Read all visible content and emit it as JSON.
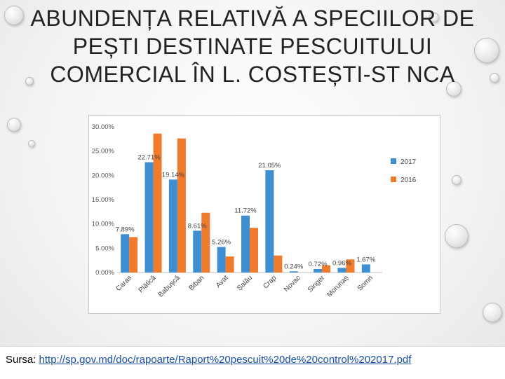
{
  "slide": {
    "title": "ABUNDENȚA RELATIVĂ A SPECIILOR DE PEȘTI DESTINATE PESCUITULUI COMERCIAL ÎN L. COSTEȘTI-ST NCA",
    "source_label": "Sursa:",
    "source_url": "http://sp.gov.md/doc/rapoarte/Raport%20pescuit%20de%20control%202017.pdf"
  },
  "chart_data": {
    "type": "bar",
    "categories": [
      "Caras",
      "Plătică",
      "Babușcă",
      "Biban",
      "Avat",
      "Șalău",
      "Crap",
      "Novac",
      "Singer",
      "Morunaș",
      "Somn"
    ],
    "series": [
      {
        "name": "2017",
        "color": "#3d8fd1",
        "values": [
          7.89,
          22.71,
          19.14,
          8.61,
          5.26,
          11.72,
          21.05,
          0.24,
          0.72,
          0.96,
          1.67
        ]
      },
      {
        "name": "2016",
        "color": "#f07b2c",
        "values": [
          7.3,
          28.6,
          27.6,
          12.3,
          3.3,
          9.2,
          3.5,
          0.0,
          1.5,
          2.7,
          0.0
        ]
      }
    ],
    "data_labels_2017": [
      "7.89%",
      "22.71%",
      "19.14%",
      "8.61%",
      "5.26%",
      "11.72%",
      "21.05%",
      "0.24%",
      "0.72%",
      "0.96%",
      "1.67%"
    ],
    "ytick_labels": [
      "0.00%",
      "5.00%",
      "10.00%",
      "15.00%",
      "20.00%",
      "25.00%",
      "30.00%"
    ],
    "ylim": [
      0,
      30
    ],
    "legend_position": "right",
    "grid": false
  }
}
